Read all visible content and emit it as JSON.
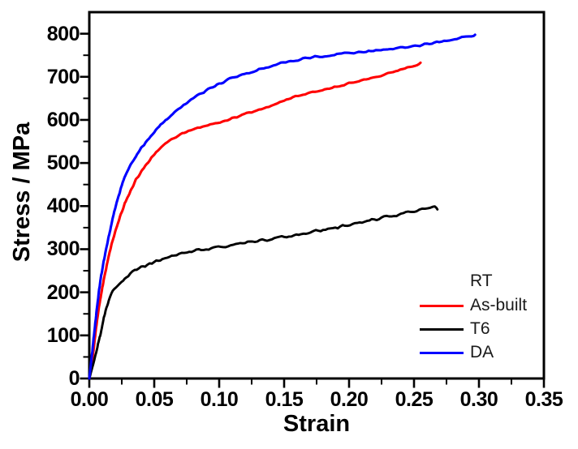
{
  "figure": {
    "background": "#ffffff",
    "frame_color": "#000000",
    "tick_color": "#000000"
  },
  "chart_data": {
    "type": "line",
    "title": "",
    "xlabel": "Strain",
    "ylabel": "Stress / MPa",
    "xlim": [
      0,
      0.35
    ],
    "ylim": [
      0,
      850
    ],
    "grid": false,
    "x_ticks": {
      "major": [
        0,
        0.05,
        0.1,
        0.15,
        0.2,
        0.25,
        0.3,
        0.35
      ],
      "labels": [
        "0.00",
        "0.05",
        "0.10",
        "0.15",
        "0.20",
        "0.25",
        "0.30",
        "0.35"
      ],
      "minor": [
        0.025,
        0.075,
        0.125,
        0.175,
        0.225,
        0.275,
        0.325
      ]
    },
    "y_ticks": {
      "major": [
        0,
        100,
        200,
        300,
        400,
        500,
        600,
        700,
        800
      ],
      "labels": [
        "0",
        "100",
        "200",
        "300",
        "400",
        "500",
        "600",
        "700",
        "800"
      ],
      "minor": [
        50,
        150,
        250,
        350,
        450,
        550,
        650,
        750
      ]
    },
    "legend": {
      "title": "RT",
      "position": "lower-right"
    },
    "series": [
      {
        "name": "As-built",
        "color": "#ff0000",
        "strain": [
          0,
          0.003,
          0.006,
          0.01,
          0.014,
          0.018,
          0.023,
          0.028,
          0.034,
          0.04,
          0.05,
          0.06,
          0.07,
          0.08,
          0.095,
          0.11,
          0.125,
          0.14,
          0.155,
          0.17,
          0.185,
          0.2,
          0.215,
          0.23,
          0.243,
          0.255
        ],
        "stress": [
          0,
          60,
          135,
          210,
          270,
          320,
          370,
          410,
          450,
          480,
          520,
          548,
          565,
          578,
          590,
          604,
          618,
          632,
          650,
          662,
          673,
          684,
          696,
          708,
          720,
          731
        ]
      },
      {
        "name": "T6",
        "color": "#000000",
        "strain": [
          0,
          0.004,
          0.008,
          0.012,
          0.016,
          0.019,
          0.022,
          0.026,
          0.03,
          0.035,
          0.04,
          0.05,
          0.06,
          0.075,
          0.09,
          0.105,
          0.12,
          0.135,
          0.15,
          0.165,
          0.18,
          0.195,
          0.21,
          0.225,
          0.24,
          0.252,
          0.262,
          0.266,
          0.268
        ],
        "stress": [
          0,
          45,
          95,
          150,
          190,
          205,
          215,
          228,
          238,
          250,
          258,
          270,
          280,
          292,
          300,
          307,
          314,
          321,
          328,
          336,
          345,
          354,
          363,
          372,
          382,
          390,
          397,
          400,
          395
        ]
      },
      {
        "name": "DA",
        "color": "#0000ff",
        "strain": [
          0,
          0.002,
          0.005,
          0.008,
          0.011,
          0.015,
          0.02,
          0.025,
          0.03,
          0.035,
          0.04,
          0.05,
          0.06,
          0.07,
          0.08,
          0.095,
          0.11,
          0.125,
          0.14,
          0.155,
          0.17,
          0.185,
          0.2,
          0.215,
          0.23,
          0.245,
          0.26,
          0.275,
          0.29,
          0.297
        ],
        "stress": [
          0,
          55,
          140,
          215,
          270,
          330,
          395,
          448,
          485,
          512,
          535,
          572,
          603,
          628,
          650,
          676,
          697,
          712,
          725,
          737,
          744,
          750,
          755,
          759,
          763,
          769,
          776,
          784,
          792,
          797
        ]
      }
    ]
  }
}
